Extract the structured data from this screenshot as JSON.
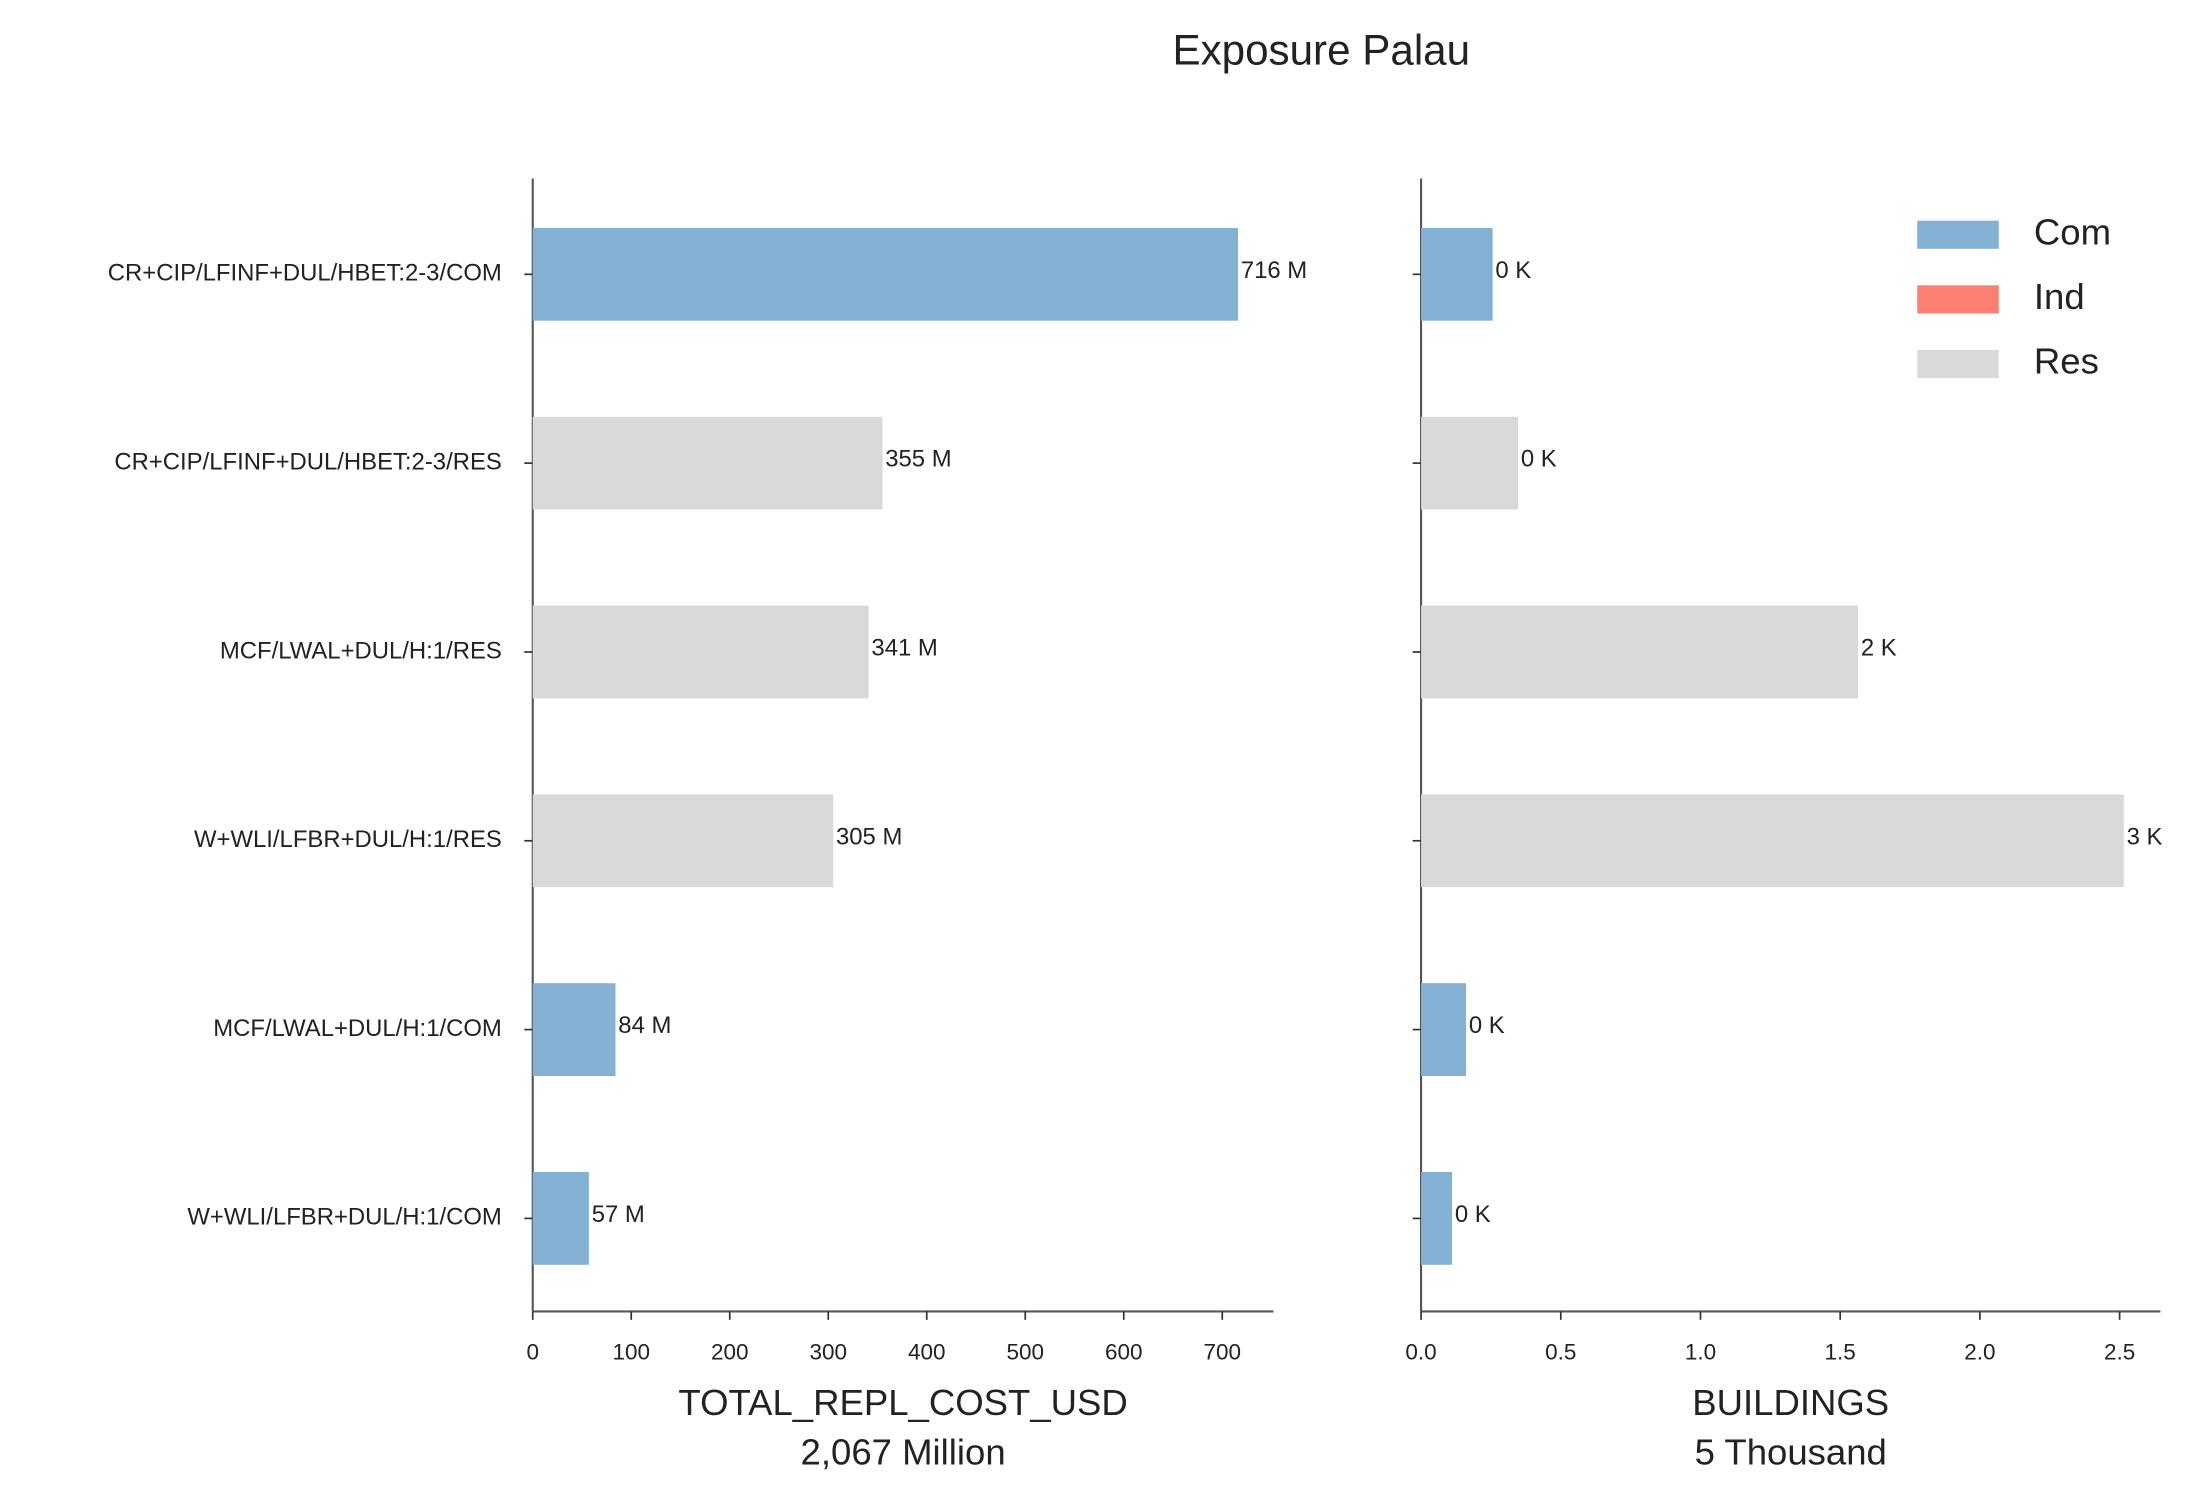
{
  "title": "Exposure Palau",
  "chart_data": [
    {
      "type": "barh",
      "categories": [
        "CR+CIP/LFINF+DUL/HBET:2-3/COM",
        "CR+CIP/LFINF+DUL/HBET:2-3/RES",
        "MCF/LWAL+DUL/H:1/RES",
        "W+WLI/LFBR+DUL/H:1/RES",
        "MCF/LWAL+DUL/H:1/COM",
        "W+WLI/LFBR+DUL/H:1/COM"
      ],
      "values": [
        716,
        355,
        341,
        305,
        84,
        57
      ],
      "value_labels": [
        "716 M",
        "355 M",
        "341 M",
        "305 M",
        "84 M",
        "57 M"
      ],
      "colors": [
        "#82b1d3",
        "#d9d9d9",
        "#d9d9d9",
        "#d9d9d9",
        "#82b1d3",
        "#82b1d3"
      ],
      "xlabel": "TOTAL_REPL_COST_USD",
      "xlabel_sub": "2,067 Million",
      "xlim": [
        0,
        752
      ],
      "xticks": [
        0,
        100,
        200,
        300,
        400,
        500,
        600,
        700
      ]
    },
    {
      "type": "barh",
      "values": [
        0.256,
        0.347,
        1.564,
        2.515,
        0.161,
        0.111
      ],
      "value_labels": [
        "0 K",
        "0 K",
        "2 K",
        "3 K",
        "0 K",
        "0 K"
      ],
      "colors": [
        "#82b1d3",
        "#d9d9d9",
        "#d9d9d9",
        "#d9d9d9",
        "#82b1d3",
        "#82b1d3"
      ],
      "xlabel": "BUILDINGS",
      "xlabel_sub": "5 Thousand",
      "xlim": [
        0,
        2.646
      ],
      "xticks": [
        {
          "value": 0,
          "label": "0.0"
        },
        0.5,
        {
          "value": 1,
          "label": "1.0"
        },
        1.5,
        {
          "value": 2,
          "label": "2.0"
        },
        2.5
      ],
      "legend": {
        "loc": "upper right",
        "items": [
          {
            "name": "Com",
            "color": "#82b1d3"
          },
          {
            "name": "Ind",
            "color": "#fb8072"
          },
          {
            "name": "Res",
            "color": "#d9d9d9"
          }
        ]
      }
    }
  ]
}
